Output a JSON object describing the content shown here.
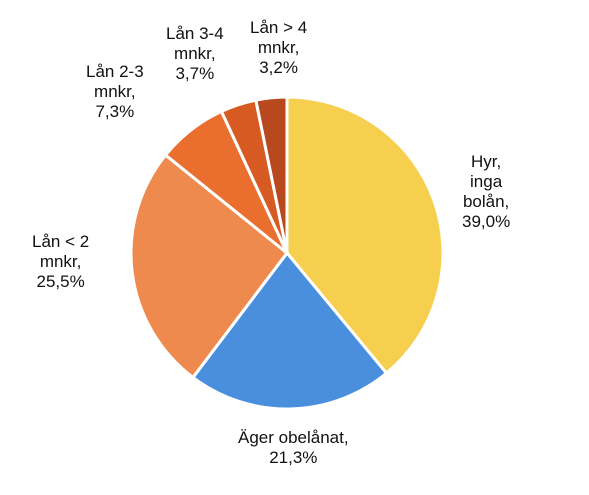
{
  "chart_data": {
    "type": "pie",
    "title": "",
    "start": "12 o'clock, clockwise",
    "slices": [
      {
        "label_lines": [
          "Hyr,",
          "inga",
          "bolån,",
          "39,0%"
        ],
        "value": 39.0,
        "color": "#F6CF4E"
      },
      {
        "label_lines": [
          "Äger obelånat,",
          "21,3%"
        ],
        "value": 21.3,
        "color": "#4A8FDD"
      },
      {
        "label_lines": [
          "Lån < 2",
          "mnkr,",
          "25,5%"
        ],
        "value": 25.5,
        "color": "#EE8A4E"
      },
      {
        "label_lines": [
          "Lån 2-3",
          "mnkr,",
          "7,3%"
        ],
        "value": 7.3,
        "color": "#EA6F2F"
      },
      {
        "label_lines": [
          "Lån 3-4",
          "mnkr,",
          "3,7%"
        ],
        "value": 3.7,
        "color": "#D75A22"
      },
      {
        "label_lines": [
          "Lån > 4",
          "mnkr,",
          "3,2%"
        ],
        "value": 3.2,
        "color": "#B8481E"
      }
    ]
  }
}
